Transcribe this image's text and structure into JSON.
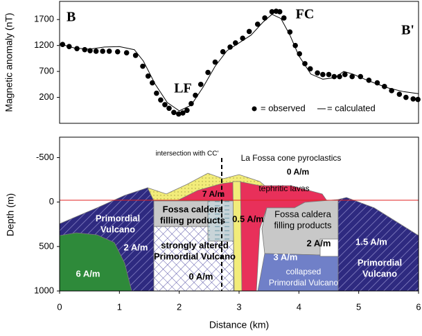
{
  "chart_data": [
    {
      "type": "line-scatter",
      "ylabel": "Magnetic anomaly (nT)",
      "labels": [
        "B",
        "B'",
        "FC",
        "LF"
      ],
      "xlim": [
        0,
        6
      ],
      "ylim": [
        -300,
        2050
      ],
      "yticks": [
        200,
        700,
        1200,
        1700
      ],
      "series": [
        {
          "name": "= observed",
          "color": "#000000",
          "kind": "scatter",
          "x": [
            0.05,
            0.16,
            0.29,
            0.42,
            0.51,
            0.61,
            0.72,
            0.83,
            0.97,
            1.12,
            1.27,
            1.39,
            1.48,
            1.55,
            1.62,
            1.69,
            1.76,
            1.83,
            1.91,
            1.99,
            2.06,
            2.13,
            2.2,
            2.27,
            2.36,
            2.48,
            2.6,
            2.73,
            2.85,
            2.94,
            3.06,
            3.17,
            3.31,
            3.43,
            3.55,
            3.62,
            3.68,
            3.75,
            3.85,
            3.94,
            4.01,
            4.1,
            4.19,
            4.31,
            4.4,
            4.5,
            4.59,
            4.68,
            4.77,
            4.89,
            5.03,
            5.17,
            5.31,
            5.43,
            5.55,
            5.68,
            5.79,
            5.91,
            5.99
          ],
          "values": [
            1220,
            1180,
            1140,
            1120,
            1100,
            1090,
            1090,
            1090,
            1080,
            1060,
            1010,
            800,
            610,
            480,
            280,
            150,
            60,
            -10,
            -90,
            -120,
            -100,
            -50,
            80,
            240,
            450,
            680,
            880,
            1080,
            1170,
            1250,
            1340,
            1470,
            1610,
            1730,
            1850,
            1860,
            1850,
            1730,
            1460,
            1200,
            1040,
            850,
            750,
            670,
            640,
            640,
            600,
            600,
            640,
            600,
            600,
            530,
            480,
            410,
            330,
            260,
            200,
            170,
            160
          ]
        },
        {
          "name": "= calculated",
          "color": "#000000",
          "kind": "line",
          "x": [
            0,
            0.25,
            0.5,
            0.75,
            1.0,
            1.25,
            1.4,
            1.6,
            1.8,
            2.0,
            2.2,
            2.4,
            2.6,
            2.8,
            3.0,
            3.2,
            3.4,
            3.55,
            3.7,
            3.85,
            4.0,
            4.2,
            4.4,
            4.6,
            4.75,
            4.9,
            5.1,
            5.3,
            5.5,
            5.75,
            6
          ],
          "values": [
            1230,
            1150,
            1130,
            1170,
            1180,
            1120,
            900,
            450,
            100,
            -60,
            50,
            400,
            800,
            1100,
            1250,
            1400,
            1650,
            1800,
            1720,
            1400,
            1000,
            650,
            550,
            580,
            700,
            650,
            550,
            460,
            380,
            310,
            270
          ]
        }
      ]
    },
    {
      "type": "cross-section",
      "xlabel": "Distance (km)",
      "ylabel": "Depth (m)",
      "xlim": [
        0,
        6
      ],
      "ylim": [
        1000,
        -730
      ],
      "xticks": [
        0,
        1,
        2,
        3,
        4,
        5,
        6
      ],
      "yticks": [
        -500,
        0,
        500,
        1000
      ],
      "annotations": [
        [
          "intersection with CC'"
        ],
        [
          "La Fossa cone pyroclastics"
        ],
        [
          "0 A/m"
        ],
        [
          "tephritic lavas"
        ],
        [
          "7 A/m"
        ],
        [
          "Primordial",
          "Vulcano"
        ],
        [
          "Fossa caldera",
          "filling products"
        ],
        [
          "0.5 A/m"
        ],
        [
          "Fossa caldera",
          "filling products"
        ],
        [
          "2 A/m"
        ],
        [
          "1.5 A/m"
        ],
        [
          "strongly altered",
          "Primordial Vulcano"
        ],
        [
          "0 A/m"
        ],
        [
          "3 A/m"
        ],
        [
          "collapsed",
          "Primordial Vulcano"
        ],
        [
          "Primordial",
          "Vulcano"
        ],
        [
          "6 A/m"
        ],
        [
          "2 A/m"
        ]
      ]
    }
  ]
}
